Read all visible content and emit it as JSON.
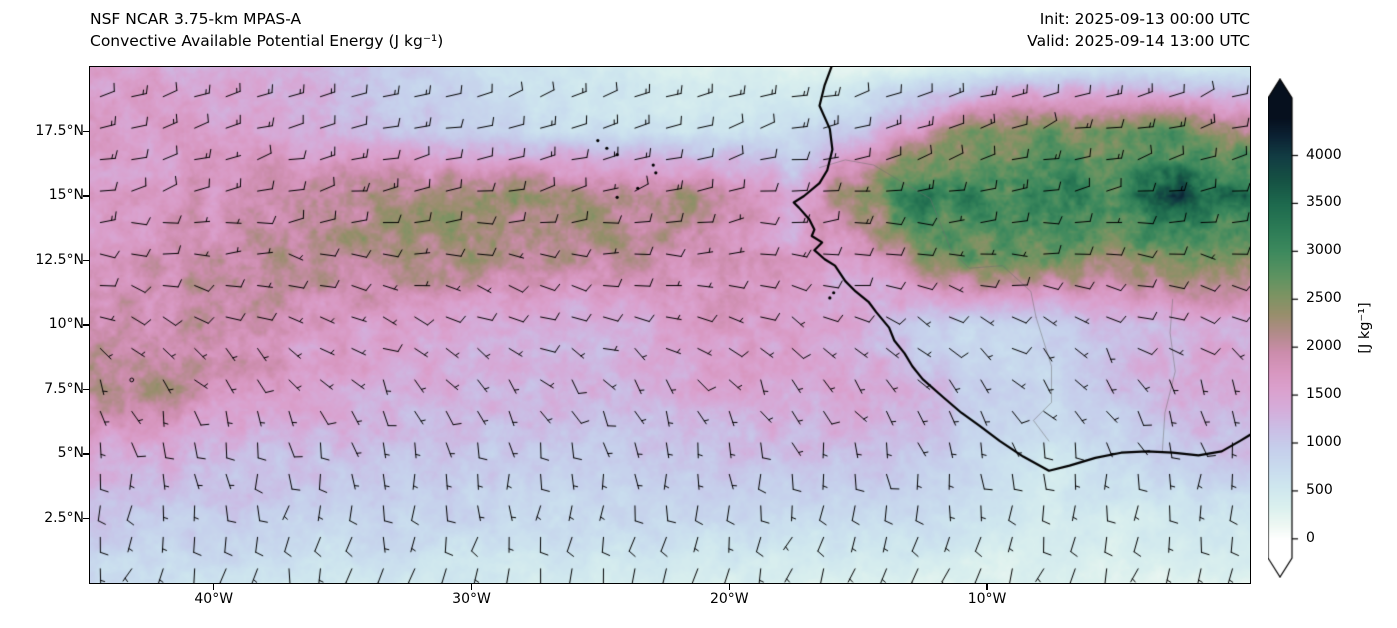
{
  "header": {
    "title_line1": "NSF NCAR 3.75-km MPAS-A",
    "title_line2": "Convective Available Potential Energy (J kg⁻¹)",
    "init_label": "Init: 2025-09-13 00:00 UTC",
    "valid_label": "Valid: 2025-09-14 13:00 UTC"
  },
  "colorbar": {
    "label": "[J kg⁻¹]"
  },
  "chart_data": {
    "type": "heatmap",
    "title": "Convective Available Potential Energy (J kg⁻¹)",
    "model": "NSF NCAR 3.75-km MPAS-A",
    "init": "2025-09-13 00:00 UTC",
    "valid": "2025-09-14 13:00 UTC",
    "units": "J kg⁻¹",
    "lon_range": [
      -44.8,
      0.2
    ],
    "lat_range": [
      0,
      20
    ],
    "x_ticks": [
      {
        "lon": -40,
        "label": "40°W"
      },
      {
        "lon": -30,
        "label": "30°W"
      },
      {
        "lon": -20,
        "label": "20°W"
      },
      {
        "lon": -10,
        "label": "10°W"
      }
    ],
    "y_ticks": [
      {
        "lat": 17.5,
        "label": "17.5°N"
      },
      {
        "lat": 15,
        "label": "15°N"
      },
      {
        "lat": 12.5,
        "label": "12.5°N"
      },
      {
        "lat": 10,
        "label": "10°N"
      },
      {
        "lat": 7.5,
        "label": "7.5°N"
      },
      {
        "lat": 5,
        "label": "5°N"
      },
      {
        "lat": 2.5,
        "label": "2.5°N"
      }
    ],
    "colorbar": {
      "label": "[J kg⁻¹]",
      "extend": "both",
      "vmin": 0,
      "vmax": 4400,
      "ticks": [
        {
          "value": 0,
          "label": "0"
        },
        {
          "value": 500,
          "label": "500"
        },
        {
          "value": 1000,
          "label": "1000"
        },
        {
          "value": 1500,
          "label": "1500"
        },
        {
          "value": 2000,
          "label": "2000"
        },
        {
          "value": 2500,
          "label": "2500"
        },
        {
          "value": 3000,
          "label": "3000"
        },
        {
          "value": 3500,
          "label": "3500"
        },
        {
          "value": 4000,
          "label": "4000"
        }
      ]
    },
    "colormap_stops": [
      [
        0,
        "#ffffff"
      ],
      [
        150,
        "#eef8f3"
      ],
      [
        350,
        "#daf0ee"
      ],
      [
        550,
        "#cfe7ee"
      ],
      [
        750,
        "#c9dbee"
      ],
      [
        950,
        "#c6cfec"
      ],
      [
        1150,
        "#cbbfe6"
      ],
      [
        1350,
        "#d5aedb"
      ],
      [
        1550,
        "#dba2cf"
      ],
      [
        1750,
        "#d897c0"
      ],
      [
        1950,
        "#cc8dac"
      ],
      [
        2150,
        "#b28b8a"
      ],
      [
        2350,
        "#988f6c"
      ],
      [
        2550,
        "#7c9463"
      ],
      [
        2750,
        "#5d9361"
      ],
      [
        3000,
        "#3e8a5e"
      ],
      [
        3250,
        "#2c7b56"
      ],
      [
        3500,
        "#1e6a4e"
      ],
      [
        3750,
        "#165244"
      ],
      [
        4000,
        "#123c43"
      ],
      [
        4200,
        "#0c2334"
      ],
      [
        4400,
        "#06101e"
      ]
    ],
    "cape_grid": {
      "lons": [
        -45,
        -42.5,
        -40,
        -37.5,
        -35,
        -32.5,
        -30,
        -27.5,
        -25,
        -22.5,
        -20,
        -17.5,
        -15,
        -12.5,
        -10,
        -7.5,
        -5,
        -2.5,
        0
      ],
      "lats": [
        0,
        2.5,
        5,
        7.5,
        10,
        12.5,
        15,
        17.5,
        20
      ],
      "values_by_lat": [
        [
          700,
          650,
          600,
          560,
          520,
          490,
          460,
          430,
          410,
          390,
          370,
          360,
          350,
          330,
          310,
          290,
          280,
          300,
          330
        ],
        [
          1060,
          1010,
          960,
          910,
          860,
          830,
          800,
          780,
          760,
          730,
          710,
          700,
          720,
          680,
          560,
          460,
          430,
          490,
          560
        ],
        [
          1450,
          1360,
          1260,
          1160,
          1100,
          1050,
          1010,
          1000,
          1000,
          1050,
          1100,
          1150,
          1150,
          1050,
          700,
          560,
          760,
          950,
          1100
        ],
        [
          2060,
          2120,
          1900,
          1660,
          1510,
          1410,
          1350,
          1300,
          1260,
          1360,
          1460,
          1510,
          1460,
          1260,
          900,
          810,
          1110,
          1410,
          1560
        ],
        [
          1860,
          1960,
          2010,
          1860,
          1610,
          1510,
          1410,
          1310,
          1260,
          1510,
          1610,
          1560,
          1310,
          860,
          800,
          900,
          1110,
          1310,
          1410
        ],
        [
          1760,
          1860,
          1960,
          2060,
          2160,
          2210,
          2210,
          2110,
          2010,
          1960,
          1860,
          1610,
          1510,
          2310,
          2710,
          2510,
          2310,
          2510,
          2310
        ],
        [
          1510,
          1610,
          1760,
          1960,
          2160,
          2260,
          2360,
          2410,
          2360,
          2260,
          2060,
          1310,
          2610,
          3210,
          3010,
          3310,
          3110,
          3710,
          3310
        ],
        [
          1610,
          1560,
          1510,
          1410,
          1260,
          1060,
          910,
          760,
          660,
          560,
          560,
          660,
          1010,
          1910,
          2610,
          2710,
          2410,
          2710,
          2310
        ],
        [
          1510,
          1460,
          1410,
          1310,
          1110,
          910,
          710,
          560,
          460,
          390,
          340,
          290,
          260,
          290,
          360,
          510,
          610,
          510,
          410
        ]
      ]
    },
    "wind_rows": [
      {
        "lat": 0,
        "u": 2,
        "v": 7
      },
      {
        "lat": 2.5,
        "u": 1,
        "v": 8
      },
      {
        "lat": 5,
        "u": -1,
        "v": 7
      },
      {
        "lat": 7.5,
        "u": -3,
        "v": 5
      },
      {
        "lat": 10,
        "u": -7,
        "v": 3
      },
      {
        "lat": 12.5,
        "u": -9,
        "v": 1
      },
      {
        "lat": 15,
        "u": -10,
        "v": -2
      },
      {
        "lat": 17.5,
        "u": -11,
        "v": -3
      },
      {
        "lat": 20,
        "u": -12,
        "v": -4
      }
    ],
    "coastline": [
      [
        -16.0,
        20.1
      ],
      [
        -16.3,
        19.3
      ],
      [
        -16.5,
        18.5
      ],
      [
        -16.1,
        17.6
      ],
      [
        -16.0,
        16.8
      ],
      [
        -16.2,
        16.0
      ],
      [
        -16.5,
        15.5
      ],
      [
        -17.1,
        15.0
      ],
      [
        -17.5,
        14.75
      ],
      [
        -17.3,
        14.55
      ],
      [
        -16.9,
        14.1
      ],
      [
        -16.7,
        13.7
      ],
      [
        -16.8,
        13.45
      ],
      [
        -16.4,
        13.2
      ],
      [
        -16.7,
        12.9
      ],
      [
        -16.3,
        12.55
      ],
      [
        -15.9,
        12.3
      ],
      [
        -15.5,
        11.7
      ],
      [
        -15.1,
        11.3
      ],
      [
        -14.6,
        10.9
      ],
      [
        -14.3,
        10.5
      ],
      [
        -13.8,
        9.9
      ],
      [
        -13.6,
        9.4
      ],
      [
        -13.2,
        8.9
      ],
      [
        -12.9,
        8.4
      ],
      [
        -12.5,
        7.9
      ],
      [
        -11.7,
        7.2
      ],
      [
        -11.0,
        6.6
      ],
      [
        -10.3,
        6.1
      ],
      [
        -9.5,
        5.5
      ],
      [
        -8.6,
        4.9
      ],
      [
        -7.6,
        4.35
      ],
      [
        -6.8,
        4.55
      ],
      [
        -5.8,
        4.85
      ],
      [
        -4.8,
        5.05
      ],
      [
        -3.8,
        5.1
      ],
      [
        -2.8,
        5.05
      ],
      [
        -1.8,
        4.95
      ],
      [
        -0.9,
        5.1
      ],
      [
        -0.2,
        5.5
      ],
      [
        0.3,
        5.8
      ]
    ],
    "islands": [
      [
        -25.1,
        17.15
      ],
      [
        -24.75,
        16.85
      ],
      [
        -24.35,
        16.6
      ],
      [
        -22.95,
        16.2
      ],
      [
        -22.85,
        15.9
      ],
      [
        -23.55,
        15.3
      ],
      [
        -24.35,
        14.95
      ],
      [
        -15.95,
        11.25
      ],
      [
        -16.1,
        11.05
      ]
    ],
    "borders": [
      [
        [
          -16.5,
          16.1
        ],
        [
          -15.5,
          16.4
        ],
        [
          -14.4,
          16.2
        ],
        [
          -13.4,
          15.6
        ],
        [
          -12.2,
          14.9
        ],
        [
          -12.0,
          14.4
        ]
      ],
      [
        [
          -12.0,
          14.4
        ],
        [
          -11.4,
          12.9
        ],
        [
          -10.7,
          12.2
        ],
        [
          -9.4,
          12.3
        ],
        [
          -8.3,
          11.3
        ],
        [
          -8.1,
          10.3
        ]
      ],
      [
        [
          -8.1,
          10.3
        ],
        [
          -7.5,
          8.4
        ],
        [
          -7.5,
          7.0
        ],
        [
          -8.2,
          6.3
        ],
        [
          -7.6,
          5.5
        ]
      ],
      [
        [
          -3.2,
          5.1
        ],
        [
          -3.1,
          6.6
        ],
        [
          -2.7,
          8.2
        ],
        [
          -2.9,
          9.7
        ],
        [
          -2.8,
          11.0
        ]
      ]
    ]
  }
}
